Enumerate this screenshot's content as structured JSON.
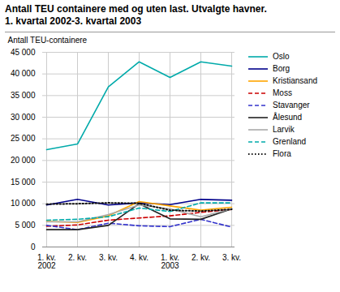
{
  "chart_data": {
    "type": "line",
    "title": "Antall TEU containere med og uten last. Utvalgte havner.",
    "subtitle": "1. kvartal 2002-3. kvartal 2003",
    "ylabel": "Antall TEU-containere",
    "categories": [
      "1. kv.\n2002",
      "2. kv.",
      "3. kv.",
      "4. kv.",
      "1. kv.\n2003",
      "2. kv.",
      "3. kv."
    ],
    "series": [
      {
        "name": "Oslo",
        "color": "#00AAAA",
        "line_style": "solid",
        "values": [
          22500,
          23800,
          37000,
          42800,
          39200,
          42800,
          41800
        ]
      },
      {
        "name": "Borg",
        "color": "#00008B",
        "line_style": "solid",
        "values": [
          9700,
          11000,
          9700,
          10200,
          9800,
          11000,
          10800
        ]
      },
      {
        "name": "Kristiansand",
        "color": "#FFA500",
        "line_style": "solid",
        "values": [
          5900,
          5700,
          7200,
          10500,
          9500,
          8500,
          9200
        ]
      },
      {
        "name": "Moss",
        "color": "#CC0000",
        "line_style": "dashed",
        "values": [
          4800,
          5100,
          6200,
          6700,
          7200,
          8000,
          8700
        ]
      },
      {
        "name": "Stavanger",
        "color": "#3333CC",
        "line_style": "dashed",
        "values": [
          5000,
          4000,
          5500,
          4900,
          4700,
          6400,
          4600
        ]
      },
      {
        "name": "Ålesund",
        "color": "#222222",
        "line_style": "solid",
        "values": [
          4000,
          4000,
          5000,
          10000,
          6500,
          6400,
          8800
        ]
      },
      {
        "name": "Larvik",
        "color": "#AAAAAA",
        "line_style": "solid",
        "values": [
          5800,
          5800,
          7500,
          9700,
          8800,
          7000,
          8800
        ]
      },
      {
        "name": "Grenland",
        "color": "#00AAAA",
        "line_style": "dashed",
        "values": [
          6200,
          6400,
          7000,
          9000,
          8200,
          10200,
          10200
        ]
      },
      {
        "name": "Flora",
        "color": "#111111",
        "line_style": "dotted",
        "values": [
          9900,
          10000,
          10200,
          10100,
          8500,
          8300,
          8700
        ]
      }
    ],
    "ylim": [
      0,
      45000
    ],
    "yticks": [
      0,
      {
        "value": 5000,
        "label": "5 000"
      },
      {
        "value": 10000,
        "label": "10 000"
      },
      {
        "value": 15000,
        "label": "15 000"
      },
      {
        "value": 20000,
        "label": "20 000"
      },
      {
        "value": 25000,
        "label": "25 000"
      },
      {
        "value": 30000,
        "label": "30 000"
      },
      {
        "value": 35000,
        "label": "35 000"
      },
      {
        "value": 40000,
        "label": "40 000"
      },
      {
        "value": 45000,
        "label": "45 000"
      }
    ],
    "grid": true,
    "legend": "right"
  }
}
